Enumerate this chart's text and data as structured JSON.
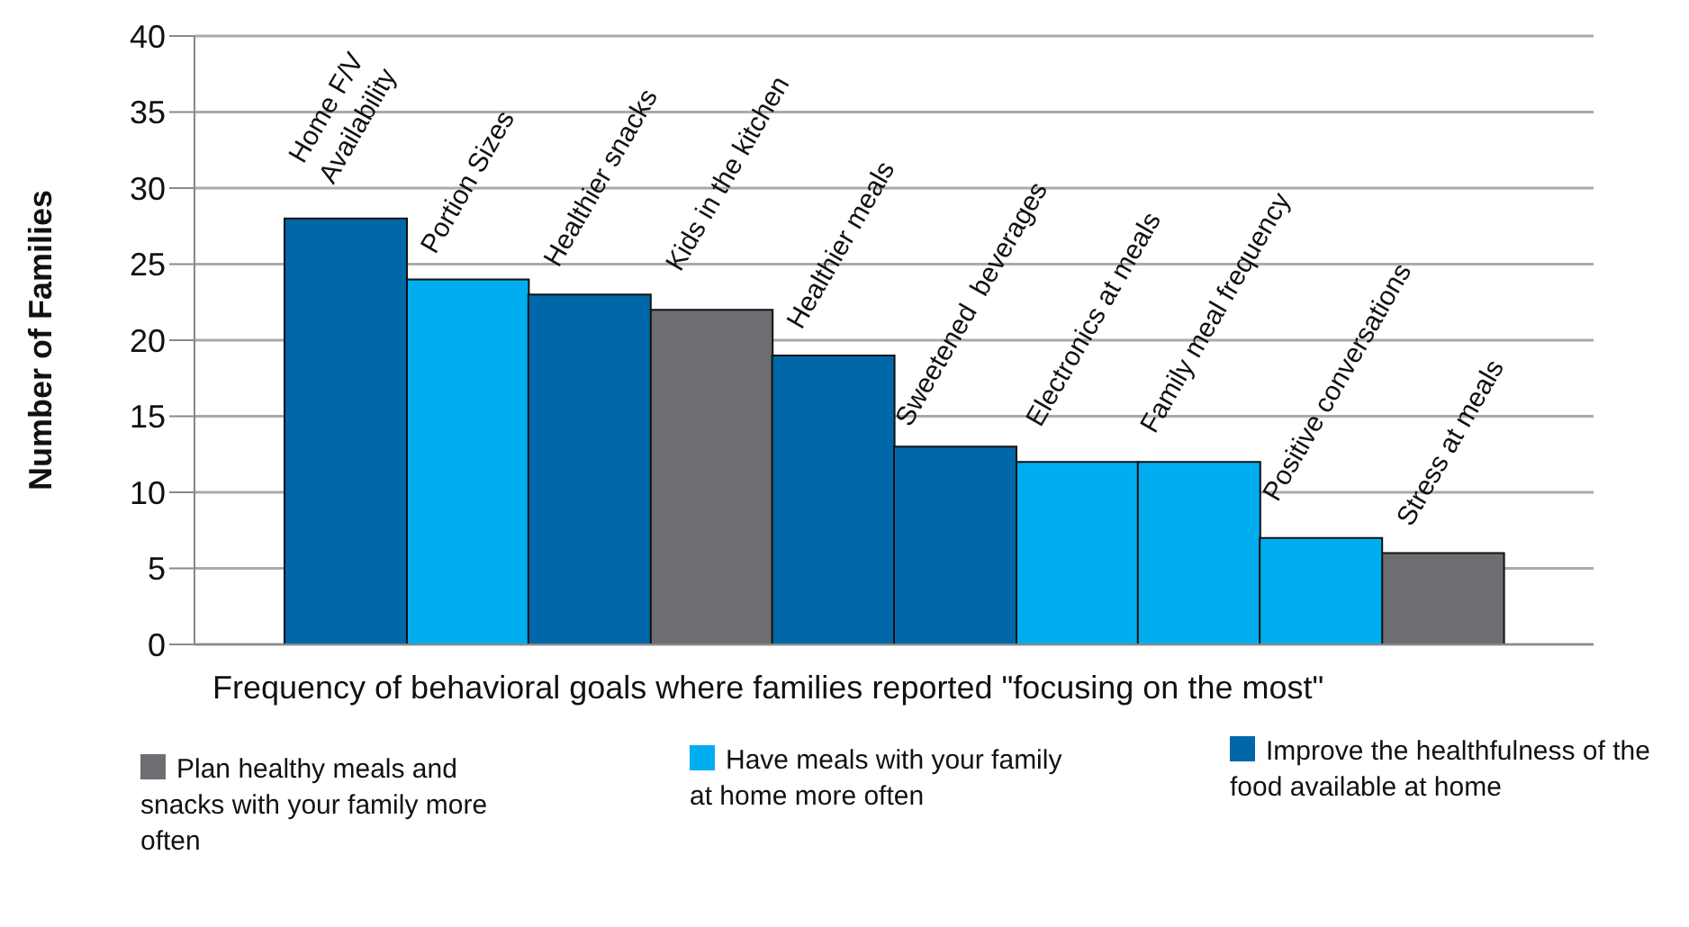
{
  "chart_data": {
    "type": "bar",
    "stacked": true,
    "xlabel": "Frequency of behavioral goals where families reported \"focusing on the most\"",
    "ylabel": "Number of Families",
    "categories": [
      "Home F/V\nAvailability",
      "Portion Sizes",
      "Healthier snacks",
      "Kids in the kitchen",
      "Healthier meals",
      "Sweetened  beverages",
      "Electronics at meals",
      "Family meal frequency",
      "Positive conversations",
      "Stress at meals"
    ],
    "series": [
      {
        "name": "Plan healthy meals and snacks with your family more often",
        "color": "#6d6e71",
        "values": [
          null,
          null,
          null,
          22,
          null,
          null,
          null,
          null,
          null,
          6
        ]
      },
      {
        "name": "Have meals with your family at home more often",
        "color": "#00aeef",
        "values": [
          null,
          24,
          null,
          null,
          null,
          null,
          12,
          12,
          7,
          null
        ]
      },
      {
        "name": "Improve the healthfulness of the food available at home",
        "color": "#0067a8",
        "values": [
          28,
          null,
          23,
          null,
          19,
          13,
          null,
          null,
          null,
          null
        ]
      }
    ],
    "ylim": [
      0,
      40
    ],
    "yticks": [
      0,
      5,
      10,
      15,
      20,
      25,
      30,
      35,
      40
    ],
    "grid": "y",
    "legend": "bottom"
  }
}
